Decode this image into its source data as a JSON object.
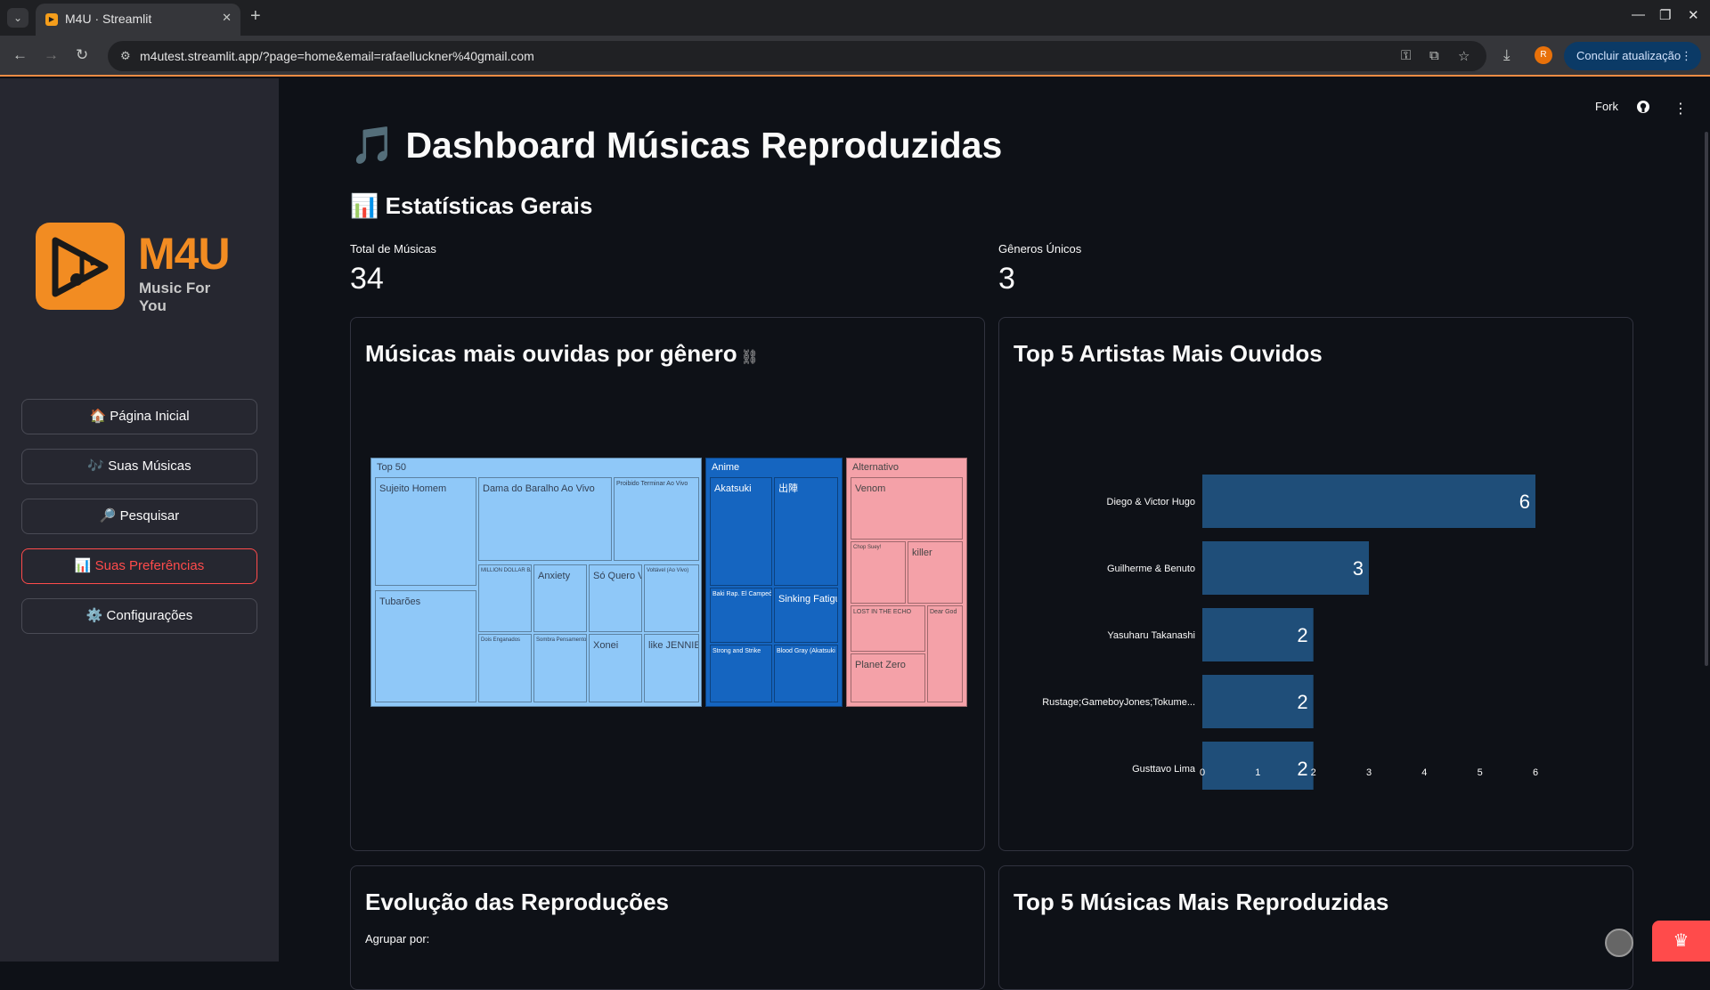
{
  "browser": {
    "tab_title": "M4U · Streamlit",
    "url": "m4utest.streamlit.app/?page=home&email=rafaelluckner%40gmail.com",
    "profile_initial": "R",
    "update_button": "Concluir atualização"
  },
  "header": {
    "fork_label": "Fork"
  },
  "sidebar": {
    "logo_title": "M4U",
    "logo_subtitle": "Music For You",
    "items": [
      {
        "label": "🏠 Página Inicial"
      },
      {
        "label": "🎶 Suas Músicas"
      },
      {
        "label": "🔎 Pesquisar"
      },
      {
        "label": "📊 Suas Preferências"
      },
      {
        "label": "⚙️ Configurações"
      }
    ]
  },
  "main": {
    "title": "🎵 Dashboard Músicas Reproduzidas",
    "section_title": "📊 Estatísticas Gerais",
    "metrics": [
      {
        "label": "Total de Músicas",
        "value": "34"
      },
      {
        "label": "Gêneros Únicos",
        "value": "3"
      }
    ],
    "cards": {
      "genre_title": "Músicas mais ouvidas por gênero",
      "artists_title": "Top 5 Artistas Mais Ouvidos",
      "evolution_title": "Evolução das Reproduções",
      "evolution_group_label": "Agrupar por:",
      "top_songs_title": "Top 5 Músicas Mais Reproduzidas"
    }
  },
  "treemap": {
    "groups": [
      {
        "name": "Top 50",
        "color": "#8fc8f8",
        "text_color": "#334155"
      },
      {
        "name": "Anime",
        "color": "#1565c0",
        "text_color": "#ffffff"
      },
      {
        "name": "Alternativo",
        "color": "#f4a1a8",
        "text_color": "#444444"
      }
    ],
    "leaves": [
      "Sujeito Homem",
      "Tubarões",
      "Dama do Baralho Ao Vivo",
      "Proibido Terminar Ao Vivo",
      "MILLION DOLLAR BABY",
      "Anxiety",
      "Só Quero Ver",
      "Voltável (Ao Vivo)",
      "Dois Enganados",
      "Sombra Pensamento",
      "Xonei",
      "like JENNIE",
      "Akatsuki",
      "出陣",
      "Baki Rap. El Campeón",
      "Sinking Fatigue",
      "Strong and Strike",
      "Blood Gray (Akatsuki Rap)",
      "Venom",
      "Chop Suey!",
      "killer",
      "LOST IN THE ECHO",
      "Dear God",
      "Planet Zero"
    ]
  },
  "chart_data": {
    "type": "bar",
    "orientation": "horizontal",
    "title": "Top 5 Artistas Mais Ouvidos",
    "categories": [
      "Diego & Victor Hugo",
      "Guilherme & Benuto",
      "Yasuharu Takanashi",
      "Rustage;GameboyJones;Tokume...",
      "Gusttavo Lima"
    ],
    "values": [
      6,
      3,
      2,
      2,
      2
    ],
    "xlim": [
      0,
      6
    ],
    "xticks": [
      "0",
      "1",
      "2",
      "3",
      "4",
      "5",
      "6"
    ],
    "bar_color": "#1f4e79",
    "grid": false
  }
}
